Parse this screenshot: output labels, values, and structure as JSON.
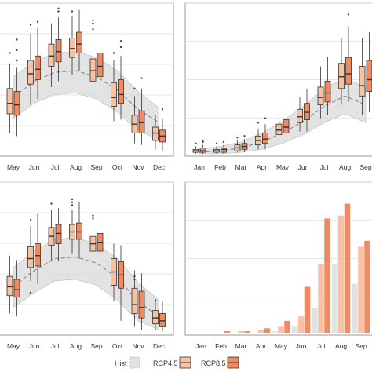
{
  "colors": {
    "hist_fill": "#e2e2e2",
    "hist_stroke": "#bbbbbb",
    "rcp45_fill": "#f7c2a3",
    "rcp85_fill": "#ef8a62",
    "box_stroke": "#333333",
    "ribbon": "#d9d9d9",
    "grid": "#dcdcdc",
    "panel_border": "#7f7f7f"
  },
  "legend": {
    "hist_label": "Hist",
    "rcp45_label": "RCP4.5",
    "rcp85_label": "RCP8.5"
  },
  "chart_data": [
    {
      "type": "box",
      "ylim": [
        0,
        100
      ],
      "x_labels": [
        "May",
        "Jun",
        "Jul",
        "Aug",
        "Sep",
        "Oct",
        "Nov",
        "Dec"
      ],
      "ribbon": {
        "mean": [
          38,
          49,
          55,
          56,
          52,
          43,
          30,
          21
        ],
        "lower": [
          24,
          34,
          40,
          41,
          37,
          28,
          16,
          9
        ],
        "upper": [
          52,
          62,
          68,
          69,
          65,
          56,
          42,
          31
        ]
      },
      "rcp45": [
        {
          "wlo": 14,
          "q1": 27,
          "med": 34,
          "q3": 44,
          "whi": 61,
          "outliers": [
            68
          ]
        },
        {
          "wlo": 33,
          "q1": 47,
          "med": 54,
          "q3": 63,
          "whi": 81,
          "outliers": [
            87
          ]
        },
        {
          "wlo": 45,
          "q1": 59,
          "med": 66,
          "q3": 74,
          "whi": 88,
          "outliers": []
        },
        {
          "wlo": 53,
          "q1": 65,
          "med": 71,
          "q3": 78,
          "whi": 93,
          "outliers": [
            96
          ]
        },
        {
          "wlo": 36,
          "q1": 49,
          "med": 56,
          "q3": 64,
          "whi": 80,
          "outliers": [
            84,
            88,
            90
          ]
        },
        {
          "wlo": 22,
          "q1": 32,
          "med": 38,
          "q3": 48,
          "whi": 63,
          "outliers": [
            68
          ]
        },
        {
          "wlo": 7,
          "q1": 14,
          "med": 20,
          "q3": 26,
          "whi": 39,
          "outliers": [
            44
          ]
        },
        {
          "wlo": 3,
          "q1": 9,
          "med": 14,
          "q3": 18,
          "whi": 26,
          "outliers": []
        }
      ],
      "rcp85": [
        {
          "wlo": 12,
          "q1": 26,
          "med": 33,
          "q3": 42,
          "whi": 58,
          "outliers": [
            63,
            70,
            77
          ]
        },
        {
          "wlo": 37,
          "q1": 50,
          "med": 57,
          "q3": 66,
          "whi": 85,
          "outliers": [
            89
          ]
        },
        {
          "wlo": 49,
          "q1": 62,
          "med": 69,
          "q3": 77,
          "whi": 92,
          "outliers": [
            96,
            98
          ]
        },
        {
          "wlo": 56,
          "q1": 68,
          "med": 74,
          "q3": 82,
          "whi": 97,
          "outliers": []
        },
        {
          "wlo": 39,
          "q1": 52,
          "med": 59,
          "q3": 68,
          "whi": 83,
          "outliers": []
        },
        {
          "wlo": 23,
          "q1": 34,
          "med": 40,
          "q3": 50,
          "whi": 66,
          "outliers": [
            72,
            76
          ]
        },
        {
          "wlo": 6,
          "q1": 14,
          "med": 21,
          "q3": 29,
          "whi": 44,
          "outliers": [
            51
          ]
        },
        {
          "wlo": 2,
          "q1": 8,
          "med": 12,
          "q3": 16,
          "whi": 24,
          "outliers": [
            30
          ]
        }
      ]
    },
    {
      "type": "box",
      "ylim": [
        0,
        100
      ],
      "x_labels": [
        "Jan",
        "Feb",
        "Mar",
        "Apr",
        "May",
        "Jun",
        "Jul",
        "Aug",
        "Sep"
      ],
      "ribbon": {
        "mean": [
          1,
          2,
          4,
          8,
          14,
          22,
          32,
          39,
          33
        ],
        "lower": [
          0,
          0,
          1,
          3,
          7,
          13,
          21,
          27,
          21
        ],
        "upper": [
          3,
          5,
          8,
          14,
          22,
          32,
          44,
          51,
          45
        ]
      },
      "rcp45": [
        {
          "wlo": 0,
          "q1": 1,
          "med": 2,
          "q3": 3,
          "whi": 5,
          "outliers": [
            7
          ]
        },
        {
          "wlo": 0,
          "q1": 1,
          "med": 2,
          "q3": 3,
          "whi": 5,
          "outliers": [
            7
          ]
        },
        {
          "wlo": 1,
          "q1": 2,
          "med": 4,
          "q3": 6,
          "whi": 9,
          "outliers": [
            11
          ]
        },
        {
          "wlo": 3,
          "q1": 6,
          "med": 9,
          "q3": 12,
          "whi": 17,
          "outliers": [
            21
          ]
        },
        {
          "wlo": 8,
          "q1": 13,
          "med": 16,
          "q3": 20,
          "whi": 27,
          "outliers": []
        },
        {
          "wlo": 15,
          "q1": 21,
          "med": 25,
          "q3": 30,
          "whi": 38,
          "outliers": []
        },
        {
          "wlo": 24,
          "q1": 33,
          "med": 38,
          "q3": 45,
          "whi": 59,
          "outliers": []
        },
        {
          "wlo": 33,
          "q1": 44,
          "med": 52,
          "q3": 61,
          "whi": 78,
          "outliers": []
        },
        {
          "wlo": 26,
          "q1": 39,
          "med": 46,
          "q3": 59,
          "whi": 78,
          "outliers": []
        }
      ],
      "rcp85": [
        {
          "wlo": 0,
          "q1": 1,
          "med": 2,
          "q3": 4,
          "whi": 6,
          "outliers": [
            8,
            9
          ]
        },
        {
          "wlo": 0,
          "q1": 1,
          "med": 3,
          "q3": 4,
          "whi": 6,
          "outliers": [
            8
          ]
        },
        {
          "wlo": 1,
          "q1": 3,
          "med": 5,
          "q3": 7,
          "whi": 10,
          "outliers": [
            12
          ]
        },
        {
          "wlo": 3,
          "q1": 7,
          "med": 10,
          "q3": 14,
          "whi": 20,
          "outliers": [
            24
          ]
        },
        {
          "wlo": 8,
          "q1": 14,
          "med": 18,
          "q3": 23,
          "whi": 31,
          "outliers": []
        },
        {
          "wlo": 15,
          "q1": 23,
          "med": 28,
          "q3": 34,
          "whi": 44,
          "outliers": []
        },
        {
          "wlo": 26,
          "q1": 35,
          "med": 41,
          "q3": 49,
          "whi": 65,
          "outliers": []
        },
        {
          "wlo": 35,
          "q1": 47,
          "med": 54,
          "q3": 65,
          "whi": 86,
          "outliers": [
            94
          ]
        },
        {
          "wlo": 28,
          "q1": 42,
          "med": 50,
          "q3": 63,
          "whi": 82,
          "outliers": []
        }
      ]
    },
    {
      "type": "box",
      "ylim": [
        0,
        100
      ],
      "x_labels": [
        "May",
        "Jun",
        "Jul",
        "Aug",
        "Sep",
        "Oct",
        "Nov",
        "Dec"
      ],
      "ribbon": {
        "mean": [
          31,
          42,
          50,
          51,
          47,
          37,
          21,
          11
        ],
        "lower": [
          17,
          27,
          35,
          36,
          32,
          22,
          8,
          2
        ],
        "upper": [
          44,
          55,
          63,
          64,
          60,
          50,
          34,
          22
        ]
      },
      "rcp45": [
        {
          "wlo": 13,
          "q1": 25,
          "med": 31,
          "q3": 38,
          "whi": 52,
          "outliers": []
        },
        {
          "wlo": 35,
          "q1": 44,
          "med": 50,
          "q3": 58,
          "whi": 72,
          "outliers": [
            27,
            76
          ]
        },
        {
          "wlo": 49,
          "q1": 59,
          "med": 65,
          "q3": 71,
          "whi": 83,
          "outliers": [
            87
          ]
        },
        {
          "wlo": 53,
          "q1": 63,
          "med": 68,
          "q3": 73,
          "whi": 83,
          "outliers": [
            86,
            88,
            90
          ]
        },
        {
          "wlo": 38,
          "q1": 55,
          "med": 60,
          "q3": 65,
          "whi": 75,
          "outliers": [
            77,
            79
          ]
        },
        {
          "wlo": 21,
          "q1": 32,
          "med": 41,
          "q3": 50,
          "whi": 60,
          "outliers": []
        },
        {
          "wlo": 4,
          "q1": 13,
          "med": 19,
          "q3": 30,
          "whi": 42,
          "outliers": [
            36,
            38
          ]
        },
        {
          "wlo": 2,
          "q1": 6,
          "med": 10,
          "q3": 15,
          "whi": 22,
          "outliers": [
            22
          ]
        }
      ],
      "rcp85": [
        {
          "wlo": 11,
          "q1": 24,
          "med": 29,
          "q3": 36,
          "whi": 49,
          "outliers": []
        },
        {
          "wlo": 33,
          "q1": 45,
          "med": 52,
          "q3": 60,
          "whi": 80,
          "outliers": []
        },
        {
          "wlo": 48,
          "q1": 60,
          "med": 67,
          "q3": 73,
          "whi": 84,
          "outliers": []
        },
        {
          "wlo": 50,
          "q1": 63,
          "med": 68,
          "q3": 74,
          "whi": 88,
          "outliers": []
        },
        {
          "wlo": 46,
          "q1": 55,
          "med": 61,
          "q3": 67,
          "whi": 75,
          "outliers": []
        },
        {
          "wlo": 8,
          "q1": 30,
          "med": 39,
          "q3": 48,
          "whi": 59,
          "outliers": []
        },
        {
          "wlo": 2,
          "q1": 10,
          "med": 17,
          "q3": 28,
          "whi": 40,
          "outliers": []
        },
        {
          "wlo": 1,
          "q1": 4,
          "med": 8,
          "q3": 13,
          "whi": 21,
          "outliers": []
        }
      ]
    },
    {
      "type": "bar",
      "ylim": [
        0,
        100
      ],
      "categories": [
        "Jan",
        "Feb",
        "Mar",
        "Apr",
        "May",
        "Jun",
        "Jul",
        "Aug",
        "Sep"
      ],
      "series": [
        {
          "key": "hist",
          "values": [
            0,
            0,
            0,
            0,
            1,
            4,
            17,
            46,
            33
          ]
        },
        {
          "key": "rcp45",
          "values": [
            0,
            0,
            1,
            2,
            4,
            11,
            46,
            79,
            58
          ]
        },
        {
          "key": "rcp85",
          "values": [
            0,
            1,
            1,
            3,
            8,
            31,
            77,
            87,
            62
          ]
        }
      ]
    }
  ]
}
